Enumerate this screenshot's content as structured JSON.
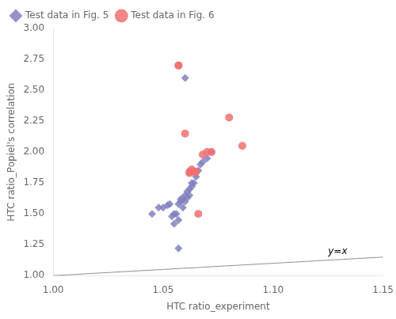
{
  "chart_data": {
    "type": "scatter",
    "xlabel": "HTC ratio_experiment",
    "ylabel": "HTC ratio_Popiel's correlation",
    "series": [
      {
        "type": "line",
        "color": "#909090",
        "x": [
          1.0,
          1.15
        ],
        "values": [
          1.0,
          1.15
        ]
      },
      {
        "name": "Test data in Fig. 5",
        "color": "#8080c0",
        "marker": "diamond",
        "x": [
          1.045,
          1.048,
          1.05,
          1.052,
          1.053,
          1.054,
          1.055,
          1.055,
          1.056,
          1.057,
          1.057,
          1.058,
          1.058,
          1.059,
          1.059,
          1.06,
          1.06,
          1.061,
          1.061,
          1.062,
          1.062,
          1.063,
          1.063,
          1.064,
          1.065,
          1.066,
          1.067,
          1.068,
          1.07,
          1.072,
          1.06,
          1.057
        ],
        "values": [
          1.5,
          1.55,
          1.55,
          1.57,
          1.58,
          1.48,
          1.42,
          1.5,
          1.5,
          1.45,
          1.58,
          1.6,
          1.62,
          1.62,
          1.55,
          1.6,
          1.65,
          1.63,
          1.68,
          1.65,
          1.7,
          1.72,
          1.75,
          1.75,
          1.8,
          1.85,
          1.9,
          1.92,
          1.95,
          2.0,
          2.6,
          1.22
        ]
      },
      {
        "name": "Test data in Fig. 6",
        "color": "#f07070",
        "marker": "circle",
        "x": [
          1.057,
          1.057,
          1.06,
          1.062,
          1.062,
          1.063,
          1.064,
          1.065,
          1.066,
          1.068,
          1.07,
          1.072,
          1.08,
          1.086
        ],
        "values": [
          2.7,
          2.7,
          2.15,
          1.84,
          1.83,
          1.86,
          1.84,
          1.84,
          1.5,
          1.98,
          2.0,
          2.0,
          2.28,
          2.05
        ]
      }
    ],
    "xlim": [
      1.0,
      1.15
    ],
    "ylim": [
      1.0,
      3.0
    ],
    "xticks": [
      {
        "value": 1.0,
        "label": "1.00"
      },
      1.05,
      {
        "value": 1.1,
        "label": "1.10"
      },
      1.15
    ],
    "yticks": [
      {
        "value": 1.0,
        "label": "1.00"
      },
      1.25,
      {
        "value": 1.5,
        "label": "1.50"
      },
      1.75,
      {
        "value": 2.0,
        "label": "2.00"
      },
      2.25,
      {
        "value": 2.5,
        "label": "2.50"
      },
      2.75,
      {
        "value": 3.0,
        "label": "3.00"
      }
    ],
    "annotations": [
      {
        "text": "y=x",
        "x": 1.125,
        "y": 1.155
      }
    ],
    "legend": "upper left",
    "grid": false
  }
}
